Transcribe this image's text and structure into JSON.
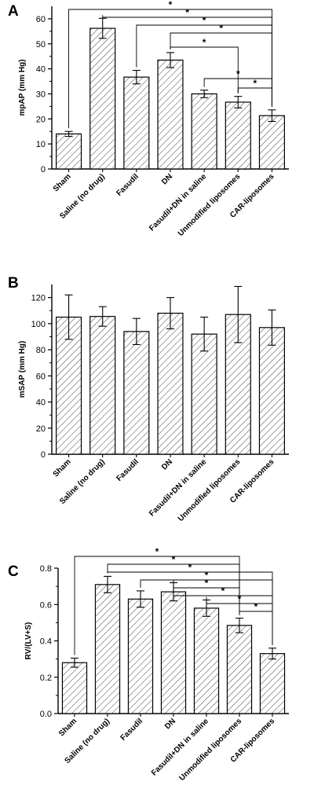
{
  "chart_data": [
    {
      "type": "bar",
      "panel_label": "A",
      "ylabel": "mpAP (mm Hg)",
      "xlabel": "",
      "ylim": [
        0,
        65
      ],
      "yticks": [
        0,
        10,
        20,
        30,
        40,
        50,
        60
      ],
      "categories": [
        "Sham",
        "Saline (no drug)",
        "Fasudil",
        "DN",
        "Fasudil+DN in saline",
        "Unmodified liposomes",
        "CAR-liposomes"
      ],
      "values": [
        14,
        56.2,
        36.7,
        43.5,
        30,
        26.7,
        21.3
      ],
      "errors": [
        1,
        4,
        2.7,
        3,
        1.5,
        2.3,
        2.3
      ],
      "significance": [
        {
          "from": 0,
          "to": 6,
          "label": "*"
        },
        {
          "from": 1,
          "to": 6,
          "label": "*"
        },
        {
          "from": 2,
          "to": 6,
          "label": "*"
        },
        {
          "from": 3,
          "to": 6,
          "label": "*"
        },
        {
          "from": 3,
          "to": 5,
          "label": "*"
        },
        {
          "from": 4,
          "to": 6,
          "label": "*"
        },
        {
          "from": 5,
          "to": 6,
          "label": "*"
        }
      ]
    },
    {
      "type": "bar",
      "panel_label": "B",
      "ylabel": "mSAP (mm Hg)",
      "xlabel": "",
      "ylim": [
        0,
        130
      ],
      "yticks": [
        0,
        20,
        40,
        60,
        80,
        100,
        120
      ],
      "categories": [
        "Sham",
        "Saline (no drug)",
        "Fasudil",
        "DN",
        "Fasudil+DN in saline",
        "Unmodified liposomes",
        "CAR-liposomes"
      ],
      "values": [
        105,
        105.5,
        94,
        108,
        92,
        107,
        97
      ],
      "errors": [
        17,
        7.5,
        10,
        12,
        13,
        21.5,
        13.5
      ],
      "significance": []
    },
    {
      "type": "bar",
      "panel_label": "C",
      "ylabel": "RV/(LV+S)",
      "xlabel": "",
      "ylim": [
        0,
        0.8
      ],
      "yticks": [
        "0.0",
        "0.2",
        "0.4",
        "0.6",
        "0.8"
      ],
      "categories": [
        "Sham",
        "Saline (no drug)",
        "Fasudil",
        "DN",
        "Fasudil+DN in saline",
        "Unmodified liposomes",
        "CAR-liposomes"
      ],
      "values": [
        0.28,
        0.71,
        0.63,
        0.67,
        0.58,
        0.485,
        0.33
      ],
      "errors": [
        0.025,
        0.045,
        0.045,
        0.05,
        0.045,
        0.04,
        0.03
      ],
      "significance": [
        {
          "from": 0,
          "to": 5,
          "label": "*"
        },
        {
          "from": 1,
          "to": 5,
          "label": "*"
        },
        {
          "from": 1,
          "to": 6,
          "label": "*"
        },
        {
          "from": 2,
          "to": 6,
          "label": "*"
        },
        {
          "from": 3,
          "to": 5,
          "label": "*"
        },
        {
          "from": 3,
          "to": 6,
          "label": "*"
        },
        {
          "from": 4,
          "to": 6,
          "label": "*"
        },
        {
          "from": 5,
          "to": 6,
          "label": "*"
        }
      ]
    }
  ]
}
